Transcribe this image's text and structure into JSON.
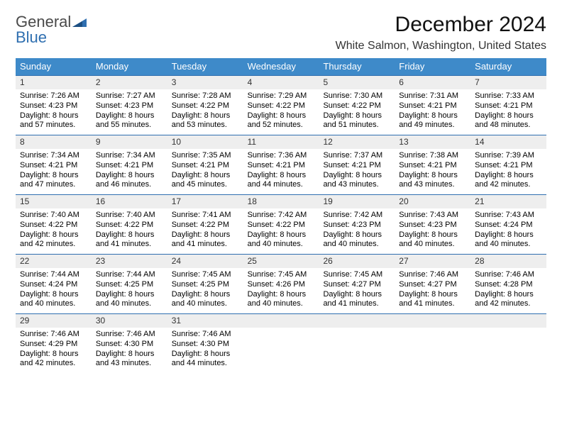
{
  "brand": {
    "name1": "General",
    "name2": "Blue"
  },
  "title": "December 2024",
  "location": "White Salmon, Washington, United States",
  "colors": {
    "header_bg": "#3e8ac9",
    "rule": "#2f6fb0",
    "daynum_bg": "#eeeeee",
    "logo_gray": "#4a4a4a",
    "logo_blue": "#2f6fb0"
  },
  "dow": [
    "Sunday",
    "Monday",
    "Tuesday",
    "Wednesday",
    "Thursday",
    "Friday",
    "Saturday"
  ],
  "weeks": [
    [
      {
        "n": "1",
        "sr": "7:26 AM",
        "ss": "4:23 PM",
        "dl": "8 hours and 57 minutes."
      },
      {
        "n": "2",
        "sr": "7:27 AM",
        "ss": "4:23 PM",
        "dl": "8 hours and 55 minutes."
      },
      {
        "n": "3",
        "sr": "7:28 AM",
        "ss": "4:22 PM",
        "dl": "8 hours and 53 minutes."
      },
      {
        "n": "4",
        "sr": "7:29 AM",
        "ss": "4:22 PM",
        "dl": "8 hours and 52 minutes."
      },
      {
        "n": "5",
        "sr": "7:30 AM",
        "ss": "4:22 PM",
        "dl": "8 hours and 51 minutes."
      },
      {
        "n": "6",
        "sr": "7:31 AM",
        "ss": "4:21 PM",
        "dl": "8 hours and 49 minutes."
      },
      {
        "n": "7",
        "sr": "7:33 AM",
        "ss": "4:21 PM",
        "dl": "8 hours and 48 minutes."
      }
    ],
    [
      {
        "n": "8",
        "sr": "7:34 AM",
        "ss": "4:21 PM",
        "dl": "8 hours and 47 minutes."
      },
      {
        "n": "9",
        "sr": "7:34 AM",
        "ss": "4:21 PM",
        "dl": "8 hours and 46 minutes."
      },
      {
        "n": "10",
        "sr": "7:35 AM",
        "ss": "4:21 PM",
        "dl": "8 hours and 45 minutes."
      },
      {
        "n": "11",
        "sr": "7:36 AM",
        "ss": "4:21 PM",
        "dl": "8 hours and 44 minutes."
      },
      {
        "n": "12",
        "sr": "7:37 AM",
        "ss": "4:21 PM",
        "dl": "8 hours and 43 minutes."
      },
      {
        "n": "13",
        "sr": "7:38 AM",
        "ss": "4:21 PM",
        "dl": "8 hours and 43 minutes."
      },
      {
        "n": "14",
        "sr": "7:39 AM",
        "ss": "4:21 PM",
        "dl": "8 hours and 42 minutes."
      }
    ],
    [
      {
        "n": "15",
        "sr": "7:40 AM",
        "ss": "4:22 PM",
        "dl": "8 hours and 42 minutes."
      },
      {
        "n": "16",
        "sr": "7:40 AM",
        "ss": "4:22 PM",
        "dl": "8 hours and 41 minutes."
      },
      {
        "n": "17",
        "sr": "7:41 AM",
        "ss": "4:22 PM",
        "dl": "8 hours and 41 minutes."
      },
      {
        "n": "18",
        "sr": "7:42 AM",
        "ss": "4:22 PM",
        "dl": "8 hours and 40 minutes."
      },
      {
        "n": "19",
        "sr": "7:42 AM",
        "ss": "4:23 PM",
        "dl": "8 hours and 40 minutes."
      },
      {
        "n": "20",
        "sr": "7:43 AM",
        "ss": "4:23 PM",
        "dl": "8 hours and 40 minutes."
      },
      {
        "n": "21",
        "sr": "7:43 AM",
        "ss": "4:24 PM",
        "dl": "8 hours and 40 minutes."
      }
    ],
    [
      {
        "n": "22",
        "sr": "7:44 AM",
        "ss": "4:24 PM",
        "dl": "8 hours and 40 minutes."
      },
      {
        "n": "23",
        "sr": "7:44 AM",
        "ss": "4:25 PM",
        "dl": "8 hours and 40 minutes."
      },
      {
        "n": "24",
        "sr": "7:45 AM",
        "ss": "4:25 PM",
        "dl": "8 hours and 40 minutes."
      },
      {
        "n": "25",
        "sr": "7:45 AM",
        "ss": "4:26 PM",
        "dl": "8 hours and 40 minutes."
      },
      {
        "n": "26",
        "sr": "7:45 AM",
        "ss": "4:27 PM",
        "dl": "8 hours and 41 minutes."
      },
      {
        "n": "27",
        "sr": "7:46 AM",
        "ss": "4:27 PM",
        "dl": "8 hours and 41 minutes."
      },
      {
        "n": "28",
        "sr": "7:46 AM",
        "ss": "4:28 PM",
        "dl": "8 hours and 42 minutes."
      }
    ],
    [
      {
        "n": "29",
        "sr": "7:46 AM",
        "ss": "4:29 PM",
        "dl": "8 hours and 42 minutes."
      },
      {
        "n": "30",
        "sr": "7:46 AM",
        "ss": "4:30 PM",
        "dl": "8 hours and 43 minutes."
      },
      {
        "n": "31",
        "sr": "7:46 AM",
        "ss": "4:30 PM",
        "dl": "8 hours and 44 minutes."
      },
      {
        "n": "",
        "sr": "",
        "ss": "",
        "dl": ""
      },
      {
        "n": "",
        "sr": "",
        "ss": "",
        "dl": ""
      },
      {
        "n": "",
        "sr": "",
        "ss": "",
        "dl": ""
      },
      {
        "n": "",
        "sr": "",
        "ss": "",
        "dl": ""
      }
    ]
  ],
  "labels": {
    "sunrise": "Sunrise:",
    "sunset": "Sunset:",
    "daylight": "Daylight:"
  }
}
